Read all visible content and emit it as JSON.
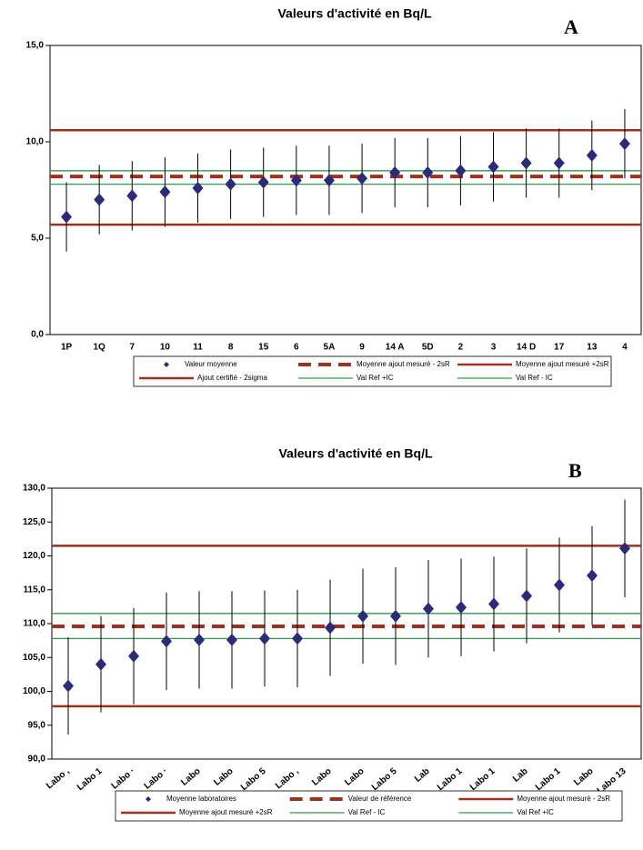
{
  "chart_data": [
    {
      "type": "errorbar",
      "title": "Valeurs d'activité en Bq/L",
      "annotation": "A",
      "categories": [
        "1P",
        "1Q",
        "7",
        "10",
        "11",
        "8",
        "15",
        "6",
        "5A",
        "9",
        "14 A",
        "5D",
        "2",
        "3",
        "14 D",
        "17",
        "13",
        "4"
      ],
      "series": [
        {
          "name": "Valeur moyenne",
          "color": "#2b2b7a",
          "values": [
            6.1,
            7.0,
            7.2,
            7.4,
            7.6,
            7.8,
            7.9,
            8.0,
            8.0,
            8.1,
            8.4,
            8.4,
            8.5,
            8.7,
            8.9,
            8.9,
            9.3,
            9.9
          ],
          "errors": [
            1.8,
            1.8,
            1.8,
            1.8,
            1.8,
            1.8,
            1.8,
            1.8,
            1.8,
            1.8,
            1.8,
            1.8,
            1.8,
            1.8,
            1.8,
            1.8,
            1.8,
            1.8
          ]
        }
      ],
      "reference_lines": [
        {
          "name": "Moyenne ajout mesuré - 2sR",
          "color": "#a0301c",
          "style": "dashed",
          "value": 8.2
        },
        {
          "name": "Moyenne ajout mesuré +2sR",
          "color": "#a0301c",
          "style": "solid",
          "value": 10.6
        },
        {
          "name": "Ajout certifié - 2sigma",
          "color": "#a0301c",
          "style": "solid",
          "value": 5.7
        },
        {
          "name": "Val Ref +IC",
          "color": "#2e9e48",
          "style": "thin",
          "value": 8.5
        },
        {
          "name": "Val Ref - IC",
          "color": "#2e9e48",
          "style": "thin",
          "value": 7.8
        }
      ],
      "ylim": [
        0,
        15
      ],
      "yticks": [
        {
          "value": 0,
          "label": "0,0"
        },
        {
          "value": 5,
          "label": "5,0"
        },
        {
          "value": 10,
          "label": "10,0"
        },
        {
          "value": 15,
          "label": "15,0"
        }
      ]
    },
    {
      "type": "errorbar",
      "title": "Valeurs d'activité en Bq/L",
      "annotation": "B",
      "categories": [
        "Labo ,",
        "Labo 1",
        "Labo ·",
        "Labo ·",
        "Labo",
        "Labo",
        "Labo 5",
        "Labo ,",
        "Labo",
        "Labo",
        "Labo 5",
        "Lab",
        "Labo 1",
        "Labo 1",
        "Lab",
        "Labo 1",
        "Labo",
        "Labo 13"
      ],
      "series": [
        {
          "name": "Moyenne laboratoires",
          "color": "#2b2b7a",
          "values": [
            100.8,
            104.0,
            105.2,
            107.4,
            107.6,
            107.6,
            107.8,
            107.8,
            109.4,
            111.1,
            111.1,
            112.2,
            112.4,
            112.9,
            114.1,
            115.7,
            117.1,
            121.1
          ],
          "errors": [
            7.2,
            7.1,
            7.1,
            7.2,
            7.2,
            7.2,
            7.1,
            7.2,
            7.1,
            7.0,
            7.2,
            7.2,
            7.2,
            7.0,
            7.0,
            7.0,
            7.3,
            7.2
          ]
        }
      ],
      "reference_lines": [
        {
          "name": "Valeur de référence",
          "color": "#a0301c",
          "style": "dashed",
          "value": 109.6
        },
        {
          "name": "Moyenne ajout mesuré - 2sR",
          "color": "#a0301c",
          "style": "solid",
          "value": 97.8
        },
        {
          "name": "Moyenne ajout mesuré +2sR",
          "color": "#a0301c",
          "style": "solid",
          "value": 121.5
        },
        {
          "name": "Val Ref - IC",
          "color": "#2e9e48",
          "style": "thin",
          "value": 107.8
        },
        {
          "name": "Val Ref +IC",
          "color": "#2e9e48",
          "style": "thin",
          "value": 111.5
        }
      ],
      "ylim": [
        90,
        130
      ],
      "yticks": [
        {
          "value": 90,
          "label": "90,0"
        },
        {
          "value": 95,
          "label": "95,0"
        },
        {
          "value": 100,
          "label": "100,0"
        },
        {
          "value": 105,
          "label": "105,0"
        },
        {
          "value": 110,
          "label": "110,0"
        },
        {
          "value": 115,
          "label": "115,0"
        },
        {
          "value": 120,
          "label": "120,0"
        },
        {
          "value": 125,
          "label": "125,0"
        },
        {
          "value": 130,
          "label": "130,0"
        }
      ]
    }
  ]
}
